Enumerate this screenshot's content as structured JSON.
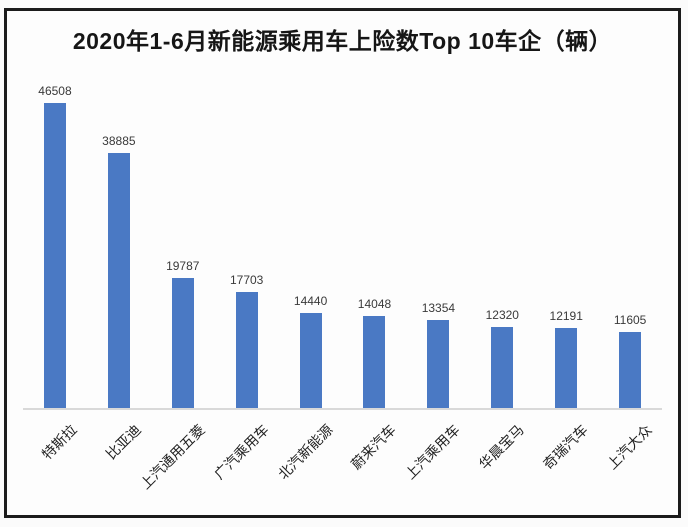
{
  "chart_data": {
    "type": "bar",
    "title": "2020年1-6月新能源乘用车上险数Top 10车企（辆）",
    "categories": [
      "特斯拉",
      "比亚迪",
      "上汽通用五菱",
      "广汽乘用车",
      "北汽新能源",
      "蔚来汽车",
      "上汽乘用车",
      "华晨宝马",
      "奇瑞汽车",
      "上汽大众"
    ],
    "values": [
      46508,
      38885,
      19787,
      17703,
      14440,
      14048,
      13354,
      12320,
      12191,
      11605
    ],
    "value_labels_shown": true,
    "xlabel": "",
    "ylabel": "",
    "ylim": [
      0,
      50000
    ],
    "grid": false,
    "legend": false,
    "bar_color": "#4a79c4",
    "axis_line_color": "#d9d9d9",
    "frame_border_color": "#1c1c1c",
    "title_color": "#161616",
    "label_color": "#3a3a3a"
  }
}
